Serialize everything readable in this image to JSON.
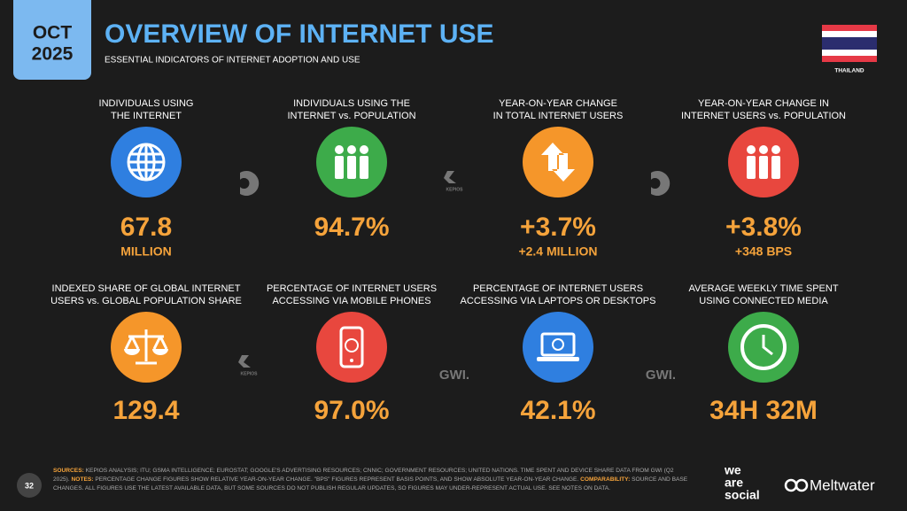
{
  "header": {
    "month": "OCT",
    "year": "2025",
    "title": "OVERVIEW OF INTERNET USE",
    "subtitle": "ESSENTIAL INDICATORS OF INTERNET ADOPTION AND USE",
    "country": "THAILAND"
  },
  "tiles": [
    {
      "label": [
        "INDIVIDUALS USING",
        "THE INTERNET"
      ],
      "value": "67.8",
      "unit": "MILLION",
      "color": "#2f7fe0",
      "icon": "globe"
    },
    {
      "label": [
        "INDIVIDUALS USING THE",
        "INTERNET vs. POPULATION"
      ],
      "value": "94.7%",
      "color": "#3dab4a",
      "icon": "people"
    },
    {
      "label": [
        "YEAR-ON-YEAR CHANGE",
        "IN TOTAL INTERNET USERS"
      ],
      "value": "+3.7%",
      "unit": "+2.4 MILLION",
      "color": "#f5962a",
      "icon": "arrows"
    },
    {
      "label": [
        "YEAR-ON-YEAR CHANGE IN",
        "INTERNET USERS vs. POPULATION"
      ],
      "value": "+3.8%",
      "unit": "+348 BPS",
      "color": "#e8473e",
      "icon": "people"
    },
    {
      "label": [
        "INDEXED SHARE OF GLOBAL INTERNET",
        "USERS vs. GLOBAL POPULATION SHARE"
      ],
      "value": "129.4",
      "color": "#f5962a",
      "icon": "scale"
    },
    {
      "label": [
        "PERCENTAGE OF INTERNET USERS",
        "ACCESSING VIA MOBILE PHONES"
      ],
      "value": "97.0%",
      "color": "#e8473e",
      "icon": "phone"
    },
    {
      "label": [
        "PERCENTAGE OF INTERNET USERS",
        "ACCESSING VIA LAPTOPS OR DESKTOPS"
      ],
      "value": "42.1%",
      "color": "#2f7fe0",
      "icon": "laptop"
    },
    {
      "label": [
        "AVERAGE WEEKLY TIME SPENT",
        "USING CONNECTED MEDIA"
      ],
      "value": "34H 32M",
      "color": "#3dab4a",
      "icon": "clock"
    }
  ],
  "watermarks": [
    "KEPIOS",
    "KEPIOS",
    "GWI.",
    "GWI."
  ],
  "footer": {
    "page": "32",
    "sources_label": "SOURCES:",
    "sources_text": "KEPIOS ANALYSIS; ITU; GSMA INTELLIGENCE; EUROSTAT; GOOGLE'S ADVERTISING RESOURCES; CNNIC; GOVERNMENT RESOURCES; UNITED NATIONS. TIME SPENT AND DEVICE SHARE DATA FROM GWI (Q2 2025).",
    "notes_label": "NOTES:",
    "notes_text": "PERCENTAGE CHANGE FIGURES SHOW RELATIVE YEAR-ON-YEAR CHANGE. \"BPS\" FIGURES REPRESENT BASIS POINTS, AND SHOW ABSOLUTE YEAR-ON-YEAR CHANGE.",
    "comparability_label": "COMPARABILITY:",
    "comparability_text": "SOURCE AND BASE CHANGES. ALL FIGURES USE THE LATEST AVAILABLE DATA, BUT SOME SOURCES DO NOT PUBLISH REGULAR UPDATES, SO FIGURES MAY UNDER-REPRESENT ACTUAL USE. SEE NOTES ON DATA.",
    "brand1": [
      "we",
      "are",
      "social"
    ],
    "brand2": "Meltwater"
  }
}
